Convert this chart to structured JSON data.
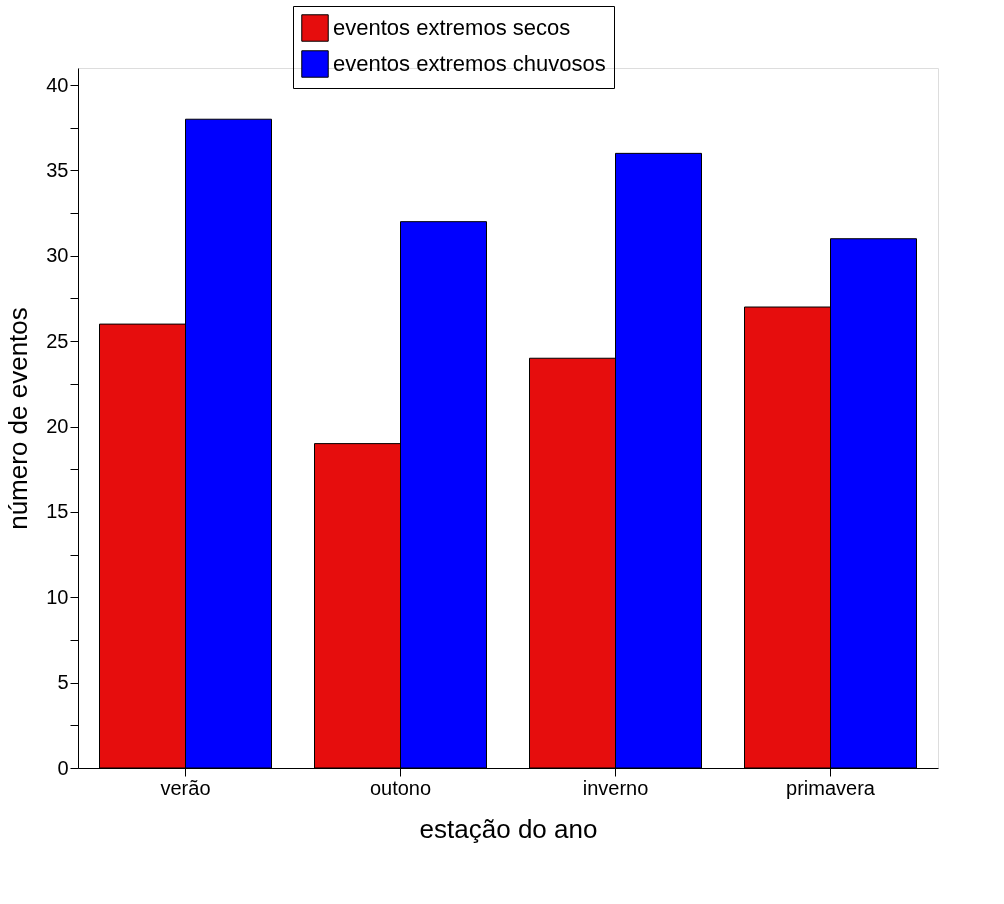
{
  "chart_data": {
    "type": "bar",
    "xlabel": "estação do ano",
    "ylabel": "número de eventos",
    "categories": [
      "verão",
      "outono",
      "inverno",
      "primavera"
    ],
    "series": [
      {
        "name": "eventos extremos secos",
        "color": "#e60d0d",
        "values": [
          26,
          19,
          24,
          27
        ]
      },
      {
        "name": "eventos extremos chuvosos",
        "color": "#0000ff",
        "values": [
          38,
          32,
          36,
          31
        ]
      }
    ],
    "ylim": [
      0,
      41
    ],
    "yticks": [
      0,
      {
        "value": 2.5,
        "label": null
      },
      5,
      {
        "value": 7.5,
        "label": null
      },
      10,
      {
        "value": 12.5,
        "label": null
      },
      15,
      {
        "value": 17.5,
        "label": null
      },
      20,
      {
        "value": 22.5,
        "label": null
      },
      25,
      {
        "value": 27.5,
        "label": null
      },
      30,
      {
        "value": 32.5,
        "label": null
      },
      35,
      {
        "value": 37.5,
        "label": null
      },
      40
    ],
    "grid": false,
    "legend": "top"
  }
}
